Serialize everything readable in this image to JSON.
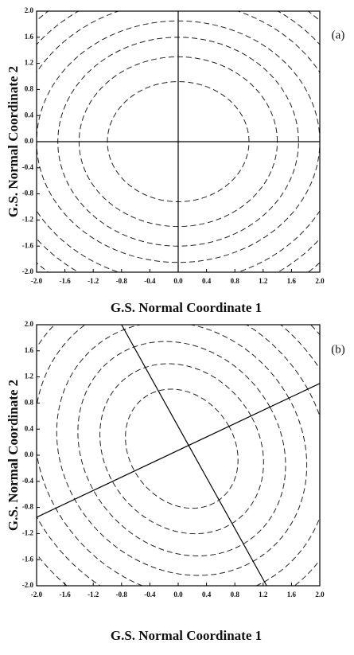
{
  "chart_data": [
    {
      "type": "contour",
      "panel_label": "(a)",
      "x_label": "G.S. Normal Coordinate 1",
      "y_label": "G.S. Normal Coordinate 2",
      "xlim": [
        -2,
        2
      ],
      "ylim": [
        -2,
        2
      ],
      "xticks": [
        {
          "value": -2,
          "label": "-2.0"
        },
        {
          "value": -1.6,
          "label": "-1.6"
        },
        {
          "value": -1.2,
          "label": "-1.2"
        },
        {
          "value": -0.8,
          "label": "-0.8"
        },
        {
          "value": -0.4,
          "label": "-0.4"
        },
        {
          "value": 0,
          "label": "0.0"
        },
        {
          "value": 0.4,
          "label": "0.4"
        },
        {
          "value": 0.8,
          "label": "0.8"
        },
        {
          "value": 1.2,
          "label": "1.2"
        },
        {
          "value": 1.6,
          "label": "1.6"
        },
        {
          "value": 2,
          "label": "2.0"
        }
      ],
      "yticks": [
        {
          "value": -2,
          "label": "-2.0"
        },
        {
          "value": -1.6,
          "label": "-1.6"
        },
        {
          "value": -1.2,
          "label": "-1.2"
        },
        {
          "value": -0.8,
          "label": "-0.8"
        },
        {
          "value": -0.4,
          "label": "-0.4"
        },
        {
          "value": 0,
          "label": "0.0"
        },
        {
          "value": 0.4,
          "label": "0.4"
        },
        {
          "value": 0.8,
          "label": "0.8"
        },
        {
          "value": 1.2,
          "label": "1.2"
        },
        {
          "value": 1.6,
          "label": "1.6"
        },
        {
          "value": 2,
          "label": "2.0"
        }
      ],
      "center": [
        0,
        0
      ],
      "rotation_deg": 0,
      "semi_axis_a": [
        1.0,
        1.4,
        1.7,
        2.0,
        2.3,
        2.55,
        2.8
      ],
      "semi_axis_b": [
        0.92,
        1.3,
        1.6,
        1.85,
        2.15,
        2.4,
        2.65
      ],
      "axis_lines": [
        {
          "x": [
            -2,
            2
          ],
          "y": [
            0,
            0
          ]
        },
        {
          "x": [
            0,
            0
          ],
          "y": [
            -2,
            2
          ]
        }
      ],
      "color": "#222",
      "linestyle": "dashed"
    },
    {
      "type": "contour",
      "panel_label": "(b)",
      "x_label": "G.S. Normal Coordinate 1",
      "y_label": "G.S. Normal Coordinate 2",
      "xlim": [
        -2,
        2
      ],
      "ylim": [
        -2,
        2
      ],
      "xticks": [
        {
          "value": -2,
          "label": "-2.0"
        },
        {
          "value": -1.6,
          "label": "-1.6"
        },
        {
          "value": -1.2,
          "label": "-1.2"
        },
        {
          "value": -0.8,
          "label": "-0.8"
        },
        {
          "value": -0.4,
          "label": "-0.4"
        },
        {
          "value": 0,
          "label": "0.0"
        },
        {
          "value": 0.4,
          "label": "0.4"
        },
        {
          "value": 0.8,
          "label": "0.8"
        },
        {
          "value": 1.2,
          "label": "1.2"
        },
        {
          "value": 1.6,
          "label": "1.6"
        },
        {
          "value": 2,
          "label": "2.0"
        }
      ],
      "yticks": [
        {
          "value": -2,
          "label": "-2.0"
        },
        {
          "value": -1.6,
          "label": "-1.6"
        },
        {
          "value": -1.2,
          "label": "-1.2"
        },
        {
          "value": -0.8,
          "label": "-0.8"
        },
        {
          "value": -0.4,
          "label": "-0.4"
        },
        {
          "value": 0,
          "label": "0.0"
        },
        {
          "value": 0.4,
          "label": "0.4"
        },
        {
          "value": 0.8,
          "label": "0.8"
        },
        {
          "value": 1.2,
          "label": "1.2"
        },
        {
          "value": 1.6,
          "label": "1.6"
        },
        {
          "value": 2,
          "label": "2.0"
        }
      ],
      "center": [
        0.05,
        0.1
      ],
      "rotation_deg": 27,
      "semi_axis_a": [
        0.75,
        1.1,
        1.4,
        1.7,
        2.0,
        2.3,
        2.6,
        2.9
      ],
      "semi_axis_b": [
        0.95,
        1.35,
        1.7,
        2.0,
        2.35,
        2.65,
        2.95,
        3.25
      ],
      "axis_lines": [
        {
          "x": [
            -2,
            2
          ],
          "y": [
            -0.95,
            1.1
          ]
        },
        {
          "x": [
            -0.8,
            1.25
          ],
          "y": [
            2,
            -2
          ]
        }
      ],
      "color": "#222",
      "linestyle": "dashed"
    }
  ]
}
